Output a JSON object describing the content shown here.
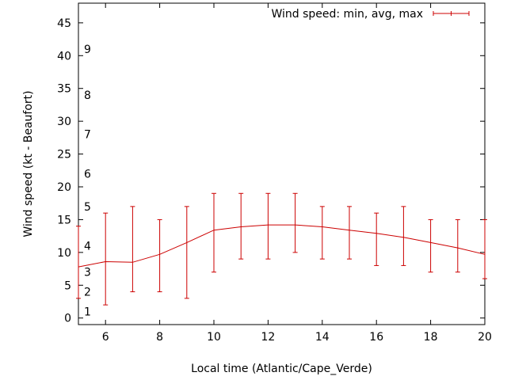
{
  "chart_data": {
    "type": "line",
    "xlabel": "Local time (Atlantic/Cape_Verde)",
    "ylabel": "Wind speed (kt - Beaufort)",
    "xlim": [
      5,
      20
    ],
    "ylim": [
      -1,
      48
    ],
    "x_ticks": [
      "6",
      "8",
      "10",
      "12",
      "14",
      "16",
      "18",
      "20"
    ],
    "y_ticks": [
      "0",
      "5",
      "10",
      "15",
      "20",
      "25",
      "30",
      "35",
      "40",
      "45"
    ],
    "beaufort_labels": [
      {
        "label": "1",
        "kt": 1
      },
      {
        "label": "2",
        "kt": 4
      },
      {
        "label": "3",
        "kt": 7
      },
      {
        "label": "4",
        "kt": 11
      },
      {
        "label": "5",
        "kt": 17
      },
      {
        "label": "6",
        "kt": 22
      },
      {
        "label": "7",
        "kt": 28
      },
      {
        "label": "8",
        "kt": 34
      },
      {
        "label": "9",
        "kt": 41
      }
    ],
    "legend": {
      "label": "Wind speed: min, avg, max",
      "placement": "top-right"
    },
    "series": [
      {
        "name": "Wind speed: min, avg, max",
        "color": "#cc0000",
        "points": [
          {
            "x": 5,
            "avg": 7.8,
            "min": 3,
            "max": 14
          },
          {
            "x": 6,
            "avg": 8.6,
            "min": 2,
            "max": 16
          },
          {
            "x": 7,
            "avg": 8.5,
            "min": 4,
            "max": 17
          },
          {
            "x": 8,
            "avg": 9.7,
            "min": 4,
            "max": 15
          },
          {
            "x": 9,
            "avg": 11.5,
            "min": 3,
            "max": 17
          },
          {
            "x": 10,
            "avg": 13.4,
            "min": 7,
            "max": 19
          },
          {
            "x": 11,
            "avg": 13.9,
            "min": 9,
            "max": 19
          },
          {
            "x": 12,
            "avg": 14.2,
            "min": 9,
            "max": 19
          },
          {
            "x": 13,
            "avg": 14.2,
            "min": 10,
            "max": 19
          },
          {
            "x": 14,
            "avg": 13.9,
            "min": 9,
            "max": 17
          },
          {
            "x": 15,
            "avg": 13.4,
            "min": 9,
            "max": 17
          },
          {
            "x": 16,
            "avg": 12.9,
            "min": 8,
            "max": 16
          },
          {
            "x": 17,
            "avg": 12.3,
            "min": 8,
            "max": 17
          },
          {
            "x": 18,
            "avg": 11.5,
            "min": 7,
            "max": 15
          },
          {
            "x": 19,
            "avg": 10.7,
            "min": 7,
            "max": 15
          },
          {
            "x": 20,
            "avg": 9.7,
            "min": 6,
            "max": 15
          }
        ]
      }
    ]
  }
}
